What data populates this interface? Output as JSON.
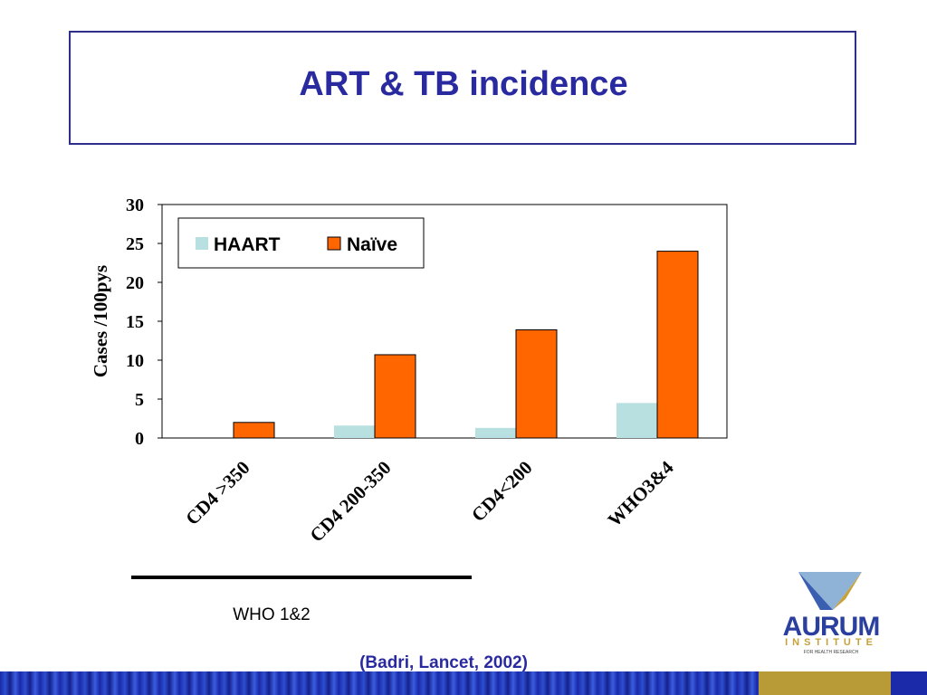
{
  "slide": {
    "title": "ART & TB incidence",
    "group_label": "WHO 1&2",
    "citation": "(Badri, Lancet, 2002)"
  },
  "logo": {
    "name": "AURUM",
    "sub": "INSTITUTE",
    "tagline": "FOR HEALTH RESEARCH"
  },
  "colors": {
    "title": "#2a2aa0",
    "haart": "#b8e0e0",
    "naive": "#ff6600",
    "footer": "#1a2aa8",
    "footer_accent": "#b89a36"
  },
  "chart_data": {
    "type": "bar",
    "title": "",
    "xlabel": "",
    "ylabel": "Cases /100pys",
    "categories": [
      "CD4 >350",
      "CD4 200-350",
      "CD4<200",
      "WHO3&4"
    ],
    "series": [
      {
        "name": "HAART",
        "color": "#b8e0e0",
        "values": [
          0,
          1.6,
          1.3,
          4.5
        ]
      },
      {
        "name": "Naïve",
        "color": "#ff6600",
        "values": [
          2.0,
          10.7,
          13.9,
          24.0
        ]
      }
    ],
    "ylim": [
      0,
      30
    ],
    "yticks": [
      0,
      5,
      10,
      15,
      20,
      25,
      30
    ],
    "legend": "top-left",
    "grid": false
  }
}
